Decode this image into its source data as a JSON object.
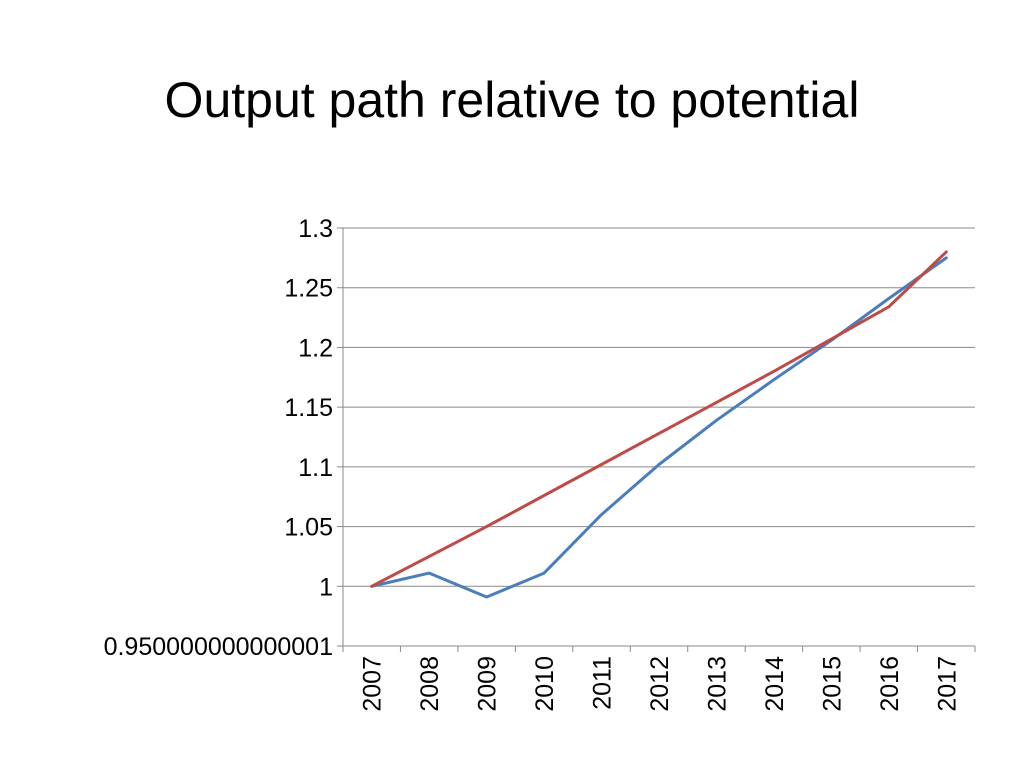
{
  "slide": {
    "title": "Output path relative to potential"
  },
  "chart_data": {
    "type": "line",
    "title": "Output path relative to potential",
    "xlabel": "",
    "ylabel": "",
    "categories": [
      "2007",
      "2008",
      "2009",
      "2010",
      "2011",
      "2012",
      "2013",
      "2014",
      "2015",
      "2016",
      "2017"
    ],
    "y_ticks": [
      "0.950000000000001",
      "1",
      "1.05",
      "1.1",
      "1.15",
      "1.2",
      "1.25",
      "1.3"
    ],
    "ylim": [
      0.95,
      1.3
    ],
    "grid": true,
    "legend": "none",
    "series": [
      {
        "color": "#4a7ebb",
        "values": [
          1.0,
          1.011,
          0.991,
          1.011,
          1.06,
          1.102,
          1.139,
          1.173,
          1.206,
          1.241,
          1.275
        ]
      },
      {
        "color": "#be4b48",
        "values": [
          1.0,
          1.025,
          1.05,
          1.076,
          1.102,
          1.128,
          1.154,
          1.18,
          1.207,
          1.234,
          1.28
        ]
      }
    ]
  }
}
